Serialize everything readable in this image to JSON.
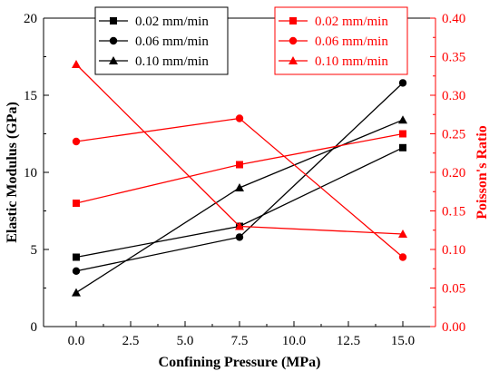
{
  "chart_data": {
    "type": "line",
    "xlabel": "Confining Pressure (MPa)",
    "ylabel_left": "Elastic Modulus (GPa)",
    "ylabel_right": "Poisson's Ratio",
    "x": [
      0.0,
      7.5,
      15.0
    ],
    "xlim": [
      -1.5,
      16.5
    ],
    "ylim_left": [
      0,
      20
    ],
    "ylim_right": [
      0,
      0.4
    ],
    "x_ticks": [
      "0.0",
      "2.5",
      "5.0",
      "7.5",
      "10.0",
      "12.5",
      "15.0"
    ],
    "y_left_ticks": [
      "0",
      "5",
      "10",
      "15",
      "20"
    ],
    "y_right_ticks": [
      "0.00",
      "0.05",
      "0.10",
      "0.15",
      "0.20",
      "0.25",
      "0.30",
      "0.35",
      "0.40"
    ],
    "grid": false,
    "legends": [
      {
        "axis": "left",
        "placement": "top-left",
        "color": "#000000"
      },
      {
        "axis": "right",
        "placement": "top-right",
        "color": "#ff0000"
      }
    ],
    "series": [
      {
        "name": "0.02 mm/min",
        "axis": "left",
        "marker": "square",
        "color": "#000000",
        "values": [
          4.5,
          6.5,
          11.6
        ]
      },
      {
        "name": "0.06 mm/min",
        "axis": "left",
        "marker": "circle",
        "color": "#000000",
        "values": [
          3.6,
          5.8,
          15.8
        ]
      },
      {
        "name": "0.10 mm/min",
        "axis": "left",
        "marker": "triangle",
        "color": "#000000",
        "values": [
          2.2,
          9.0,
          13.4
        ]
      },
      {
        "name": "0.02 mm/min",
        "axis": "right",
        "marker": "square",
        "color": "#ff0000",
        "values": [
          0.16,
          0.21,
          0.25
        ]
      },
      {
        "name": "0.06 mm/min",
        "axis": "right",
        "marker": "circle",
        "color": "#ff0000",
        "values": [
          0.24,
          0.27,
          0.09
        ]
      },
      {
        "name": "0.10 mm/min",
        "axis": "right",
        "marker": "triangle",
        "color": "#ff0000",
        "values": [
          0.34,
          0.13,
          0.12
        ]
      }
    ]
  }
}
